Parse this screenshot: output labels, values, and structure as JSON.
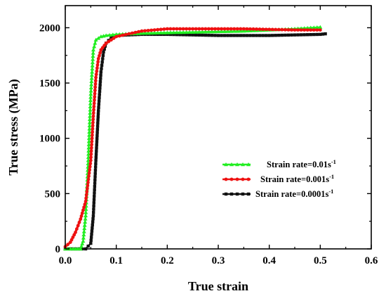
{
  "chart_data": {
    "type": "line",
    "title": "",
    "xlabel": "True strain",
    "ylabel": "True stress  (MPa)",
    "xlim": [
      0.0,
      0.6
    ],
    "ylim": [
      0,
      2200
    ],
    "xticks": [
      "0.0",
      "0.1",
      "0.2",
      "0.3",
      "0.4",
      "0.5",
      "0.6"
    ],
    "yticks": [
      "0",
      "500",
      "1000",
      "1500",
      "2000"
    ],
    "xtick_values": [
      0.0,
      0.1,
      0.2,
      0.3,
      0.4,
      0.5,
      0.6
    ],
    "ytick_values": [
      0,
      500,
      1000,
      1500,
      2000
    ],
    "grid": false,
    "legend_placement": "lower-right",
    "series": [
      {
        "name": "Strain rate=0.01s",
        "name_sup": "-1",
        "color": "#22ee22",
        "marker": "triangle",
        "points": [
          [
            0.0,
            0
          ],
          [
            0.01,
            0
          ],
          [
            0.02,
            0
          ],
          [
            0.03,
            0
          ],
          [
            0.035,
            70
          ],
          [
            0.04,
            300
          ],
          [
            0.045,
            800
          ],
          [
            0.05,
            1400
          ],
          [
            0.055,
            1800
          ],
          [
            0.06,
            1890
          ],
          [
            0.07,
            1920
          ],
          [
            0.08,
            1930
          ],
          [
            0.1,
            1940
          ],
          [
            0.15,
            1950
          ],
          [
            0.2,
            1955
          ],
          [
            0.25,
            1960
          ],
          [
            0.3,
            1965
          ],
          [
            0.35,
            1970
          ],
          [
            0.4,
            1980
          ],
          [
            0.45,
            1990
          ],
          [
            0.5,
            2005
          ]
        ]
      },
      {
        "name": "Strain rate=0.001s",
        "name_sup": "-1",
        "color": "#ee1111",
        "marker": "circle",
        "points": [
          [
            0.0,
            20
          ],
          [
            0.01,
            60
          ],
          [
            0.02,
            150
          ],
          [
            0.03,
            270
          ],
          [
            0.04,
            430
          ],
          [
            0.05,
            800
          ],
          [
            0.055,
            1200
          ],
          [
            0.06,
            1550
          ],
          [
            0.065,
            1720
          ],
          [
            0.07,
            1800
          ],
          [
            0.08,
            1860
          ],
          [
            0.1,
            1920
          ],
          [
            0.15,
            1970
          ],
          [
            0.2,
            1990
          ],
          [
            0.25,
            1990
          ],
          [
            0.3,
            1990
          ],
          [
            0.35,
            1990
          ],
          [
            0.4,
            1985
          ],
          [
            0.45,
            1980
          ],
          [
            0.5,
            1980
          ]
        ]
      },
      {
        "name": "Strain rate=0.0001s",
        "name_sup": "-1",
        "color": "#111111",
        "marker": "square",
        "points": [
          [
            0.0,
            0
          ],
          [
            0.04,
            0
          ],
          [
            0.05,
            50
          ],
          [
            0.055,
            300
          ],
          [
            0.06,
            800
          ],
          [
            0.065,
            1250
          ],
          [
            0.07,
            1600
          ],
          [
            0.075,
            1780
          ],
          [
            0.08,
            1860
          ],
          [
            0.09,
            1910
          ],
          [
            0.1,
            1930
          ],
          [
            0.15,
            1940
          ],
          [
            0.2,
            1940
          ],
          [
            0.25,
            1935
          ],
          [
            0.3,
            1930
          ],
          [
            0.35,
            1930
          ],
          [
            0.4,
            1930
          ],
          [
            0.45,
            1935
          ],
          [
            0.5,
            1940
          ],
          [
            0.51,
            1945
          ]
        ]
      }
    ]
  }
}
